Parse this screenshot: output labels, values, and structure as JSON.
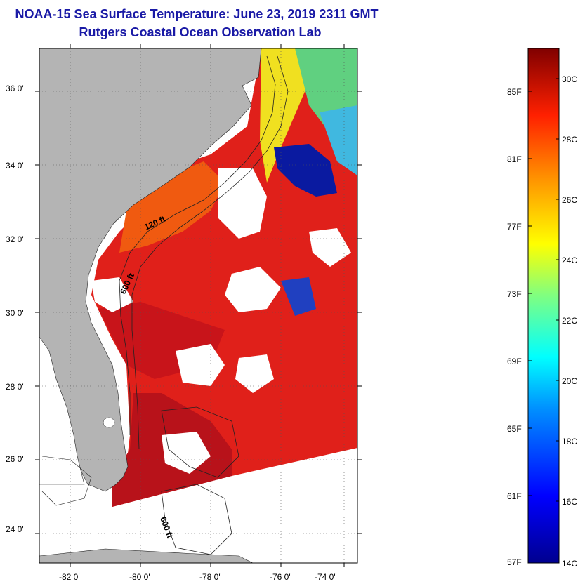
{
  "title": {
    "line1": "NOAA-15 Sea Surface Temperature:  June 23, 2019 2311 GMT",
    "line2": "Rutgers Coastal Ocean Observation Lab"
  },
  "map": {
    "lat_labels": [
      "36 0'",
      "34 0'",
      "32 0'",
      "30 0'",
      "28 0'",
      "26 0'",
      "24 0'"
    ],
    "lon_labels": [
      "-82 0'",
      "-80 0'",
      "-78 0'",
      "-76 0'",
      "-74 0'"
    ],
    "contours": {
      "c120": "120 ft",
      "c600": "600 ft",
      "c600b": "600 ft"
    }
  },
  "colorbar": {
    "fahrenheit": [
      "85F",
      "81F",
      "77F",
      "73F",
      "69F",
      "65F",
      "61F",
      "57F"
    ],
    "celsius": [
      "30C",
      "28C",
      "26C",
      "24C",
      "22C",
      "20C",
      "18C",
      "16C",
      "14C"
    ]
  },
  "colors": {
    "title": "#1a1aa6",
    "land": "#b4b4b4",
    "sst_warm": "#e0201a",
    "sst_hot": "#c8141a",
    "cold_patch": "#0a1aa0"
  }
}
